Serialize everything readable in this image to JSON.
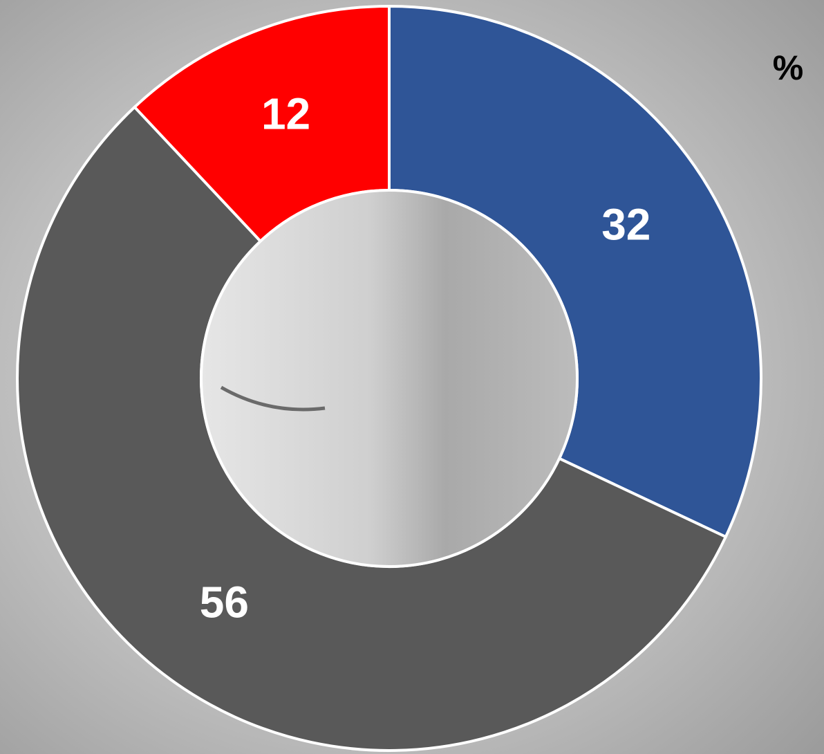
{
  "chart_data": {
    "type": "donut",
    "title": "%",
    "values": [
      32,
      56,
      12
    ],
    "colors": [
      "#2f5597",
      "#595959",
      "#ff0000"
    ]
  }
}
